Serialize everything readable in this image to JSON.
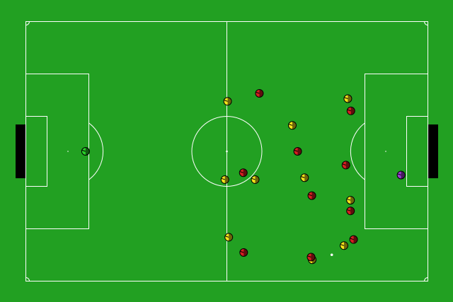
{
  "colors": {
    "pitch": "#22a022",
    "lines": "#ffffff",
    "goal": "#000000",
    "team_yellow": "#f2e21a",
    "team_red": "#d42020",
    "goalie_left": "#29cf29",
    "goalie_right": "#9a3ad0",
    "ball": "#ffffff"
  },
  "field": {
    "length_m": 105,
    "width_m": 68
  },
  "ball": {
    "x": 27.4,
    "y": 27.1
  },
  "players": [
    {
      "team": "left-goalie",
      "x": -36.9,
      "y": 0.0
    },
    {
      "team": "yellow",
      "x": 0.2,
      "y": -13.1
    },
    {
      "team": "yellow",
      "x": 17.1,
      "y": -6.8
    },
    {
      "team": "yellow",
      "x": 31.6,
      "y": -13.8
    },
    {
      "team": "yellow",
      "x": -0.5,
      "y": 7.4
    },
    {
      "team": "yellow",
      "x": 7.4,
      "y": 7.4
    },
    {
      "team": "yellow",
      "x": 20.3,
      "y": 6.9
    },
    {
      "team": "yellow",
      "x": 32.3,
      "y": 12.8
    },
    {
      "team": "yellow",
      "x": 0.5,
      "y": 22.5
    },
    {
      "team": "yellow",
      "x": 30.6,
      "y": 24.7
    },
    {
      "team": "yellow",
      "x": 22.3,
      "y": 28.4
    },
    {
      "team": "red",
      "x": 8.5,
      "y": -15.2
    },
    {
      "team": "red",
      "x": 32.4,
      "y": -10.6
    },
    {
      "team": "red",
      "x": 18.5,
      "y": 0.0
    },
    {
      "team": "red",
      "x": 31.1,
      "y": 3.6
    },
    {
      "team": "red",
      "x": 4.3,
      "y": 5.6
    },
    {
      "team": "red",
      "x": 22.2,
      "y": 11.6
    },
    {
      "team": "red",
      "x": 32.3,
      "y": 15.6
    },
    {
      "team": "red",
      "x": 33.1,
      "y": 23.1
    },
    {
      "team": "red",
      "x": 4.4,
      "y": 26.5
    },
    {
      "team": "red",
      "x": 22.0,
      "y": 27.7
    },
    {
      "team": "right-goalie",
      "x": 45.5,
      "y": 6.2
    }
  ]
}
